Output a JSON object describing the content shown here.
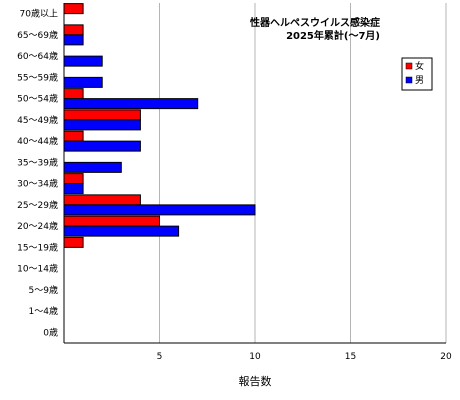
{
  "chart_data": {
    "type": "bar",
    "orientation": "horizontal",
    "title_lines": [
      "性器ヘルペスウイルス感染症",
      "2025年累計(～7月)"
    ],
    "xlabel": "報告数",
    "ylabel": "",
    "xlim": [
      0,
      20
    ],
    "x_ticks": [
      5,
      10,
      15,
      20
    ],
    "grid": "vertical",
    "legend_position": "top-right",
    "categories": [
      "70歳以上",
      "65～69歳",
      "60～64歳",
      "55～59歳",
      "50～54歳",
      "45～49歳",
      "40～44歳",
      "35～39歳",
      "30～34歳",
      "25～29歳",
      "20～24歳",
      "15～19歳",
      "10～14歳",
      "5～9歳",
      "1～4歳",
      "0歳"
    ],
    "series": [
      {
        "name": "女",
        "color": "#ff0000",
        "values": [
          1,
          1,
          0,
          0,
          1,
          4,
          1,
          0,
          1,
          4,
          5,
          1,
          0,
          0,
          0,
          0
        ]
      },
      {
        "name": "男",
        "color": "#0000ff",
        "values": [
          0,
          1,
          2,
          2,
          7,
          4,
          4,
          3,
          1,
          10,
          6,
          0,
          0,
          0,
          0,
          0
        ]
      }
    ]
  }
}
